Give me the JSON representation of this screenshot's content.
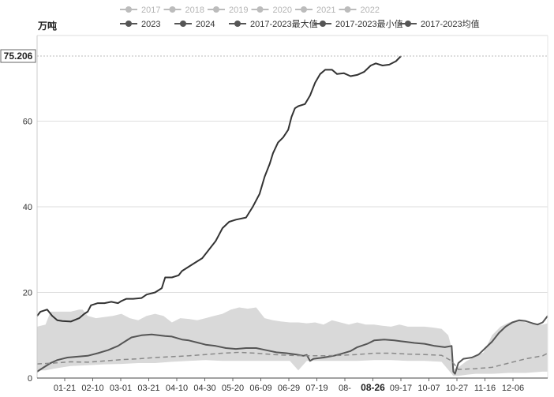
{
  "chart_data": {
    "type": "line",
    "ylabel": "万吨",
    "ylim": [
      0,
      80
    ],
    "yticks": [
      0,
      20,
      40,
      60
    ],
    "x_ticks": [
      "01-21",
      "02-10",
      "03-01",
      "03-21",
      "04-10",
      "04-30",
      "05-20",
      "06-09",
      "06-29",
      "07-19",
      "08-",
      "08-26",
      "09-17",
      "10-07",
      "10-27",
      "11-16",
      "12-06"
    ],
    "hover": {
      "x_label": "08-26",
      "y_value": "75.206"
    },
    "legend": [
      {
        "name": "2017",
        "active": false
      },
      {
        "name": "2018",
        "active": false
      },
      {
        "name": "2019",
        "active": false
      },
      {
        "name": "2020",
        "active": false
      },
      {
        "name": "2021",
        "active": false
      },
      {
        "name": "2022",
        "active": false
      },
      {
        "name": "2023",
        "active": true
      },
      {
        "name": "2024",
        "active": true
      },
      {
        "name": "2017-2023最大值",
        "active": true
      },
      {
        "name": "2017-2023最小值",
        "active": true
      },
      {
        "name": "2017-2023均值",
        "active": true
      }
    ],
    "band": {
      "max": [
        [
          0,
          12
        ],
        [
          5,
          12.5
        ],
        [
          8,
          15.5
        ],
        [
          20,
          15.5
        ],
        [
          25,
          16
        ],
        [
          27,
          16
        ],
        [
          30,
          14.5
        ],
        [
          35,
          14
        ],
        [
          45,
          14.5
        ],
        [
          50,
          15
        ],
        [
          55,
          14
        ],
        [
          60,
          13.5
        ],
        [
          65,
          14.5
        ],
        [
          70,
          15
        ],
        [
          75,
          14.5
        ],
        [
          80,
          13
        ],
        [
          85,
          14
        ],
        [
          90,
          13.8
        ],
        [
          95,
          13.5
        ],
        [
          100,
          14
        ],
        [
          105,
          14.5
        ],
        [
          110,
          15
        ],
        [
          115,
          16
        ],
        [
          120,
          16.5
        ],
        [
          125,
          16.2
        ],
        [
          130,
          16.5
        ],
        [
          135,
          14
        ],
        [
          140,
          13.5
        ],
        [
          145,
          13.2
        ],
        [
          150,
          13
        ],
        [
          155,
          13
        ],
        [
          160,
          12.8
        ],
        [
          165,
          13
        ],
        [
          170,
          12.5
        ],
        [
          175,
          13.5
        ],
        [
          180,
          13
        ],
        [
          185,
          12.5
        ],
        [
          190,
          13
        ],
        [
          195,
          12.5
        ],
        [
          200,
          12.5
        ],
        [
          205,
          12.2
        ],
        [
          210,
          12
        ],
        [
          215,
          12.5
        ],
        [
          220,
          12
        ],
        [
          225,
          12
        ],
        [
          230,
          12
        ],
        [
          235,
          11.8
        ],
        [
          240,
          11.5
        ],
        [
          244,
          10
        ],
        [
          246,
          7
        ],
        [
          247,
          2
        ],
        [
          250,
          2.5
        ],
        [
          255,
          4
        ],
        [
          260,
          5
        ],
        [
          265,
          6
        ],
        [
          270,
          10
        ],
        [
          275,
          12
        ],
        [
          280,
          13
        ],
        [
          285,
          13.5
        ],
        [
          290,
          13
        ],
        [
          295,
          12.5
        ],
        [
          300,
          12.5
        ],
        [
          303,
          12.8
        ]
      ],
      "min": [
        [
          0,
          1.8
        ],
        [
          5,
          1.8
        ],
        [
          10,
          2.2
        ],
        [
          15,
          2.5
        ],
        [
          20,
          2.8
        ],
        [
          30,
          3
        ],
        [
          40,
          3.2
        ],
        [
          50,
          3.3
        ],
        [
          60,
          3.5
        ],
        [
          70,
          3.5
        ],
        [
          80,
          3.8
        ],
        [
          90,
          4
        ],
        [
          100,
          4.2
        ],
        [
          110,
          4
        ],
        [
          120,
          4
        ],
        [
          130,
          4
        ],
        [
          140,
          4
        ],
        [
          150,
          4
        ],
        [
          155,
          1.8
        ],
        [
          160,
          4
        ],
        [
          170,
          4
        ],
        [
          180,
          4
        ],
        [
          190,
          4
        ],
        [
          200,
          4.2
        ],
        [
          210,
          4.2
        ],
        [
          220,
          4
        ],
        [
          230,
          4
        ],
        [
          240,
          3.8
        ],
        [
          246,
          1
        ],
        [
          247,
          0.5
        ],
        [
          250,
          0.5
        ],
        [
          255,
          0.8
        ],
        [
          260,
          1
        ],
        [
          270,
          1
        ],
        [
          280,
          1.2
        ],
        [
          290,
          1.2
        ],
        [
          300,
          1.5
        ],
        [
          303,
          1.5
        ]
      ]
    },
    "series": [
      {
        "name": "2024",
        "points": [
          [
            0,
            14.5
          ],
          [
            2,
            15.5
          ],
          [
            6,
            16
          ],
          [
            9,
            14.5
          ],
          [
            12,
            13.5
          ],
          [
            15,
            13.3
          ],
          [
            20,
            13.2
          ],
          [
            25,
            14
          ],
          [
            28,
            15
          ],
          [
            30,
            15.5
          ],
          [
            32,
            17
          ],
          [
            36,
            17.5
          ],
          [
            40,
            17.5
          ],
          [
            44,
            17.8
          ],
          [
            48,
            17.5
          ],
          [
            50,
            18
          ],
          [
            53,
            18.5
          ],
          [
            57,
            18.5
          ],
          [
            62,
            18.7
          ],
          [
            65,
            19.5
          ],
          [
            70,
            20
          ],
          [
            74,
            21
          ],
          [
            76,
            23.5
          ],
          [
            80,
            23.5
          ],
          [
            84,
            24
          ],
          [
            86,
            25
          ],
          [
            90,
            26
          ],
          [
            94,
            27
          ],
          [
            98,
            28
          ],
          [
            102,
            30
          ],
          [
            106,
            32
          ],
          [
            108,
            33.5
          ],
          [
            110,
            35
          ],
          [
            114,
            36.5
          ],
          [
            118,
            37
          ],
          [
            124,
            37.5
          ],
          [
            128,
            40
          ],
          [
            132,
            43
          ],
          [
            135,
            47
          ],
          [
            138,
            50
          ],
          [
            140,
            52.5
          ],
          [
            143,
            55
          ],
          [
            146,
            56.2
          ],
          [
            149,
            58
          ],
          [
            151,
            61
          ],
          [
            153,
            63
          ],
          [
            155,
            63.5
          ],
          [
            159,
            64
          ],
          [
            162,
            66
          ],
          [
            165,
            69
          ],
          [
            168,
            71
          ],
          [
            171,
            72
          ],
          [
            175,
            72
          ],
          [
            178,
            71
          ],
          [
            182,
            71.2
          ],
          [
            186,
            70.5
          ],
          [
            190,
            70.8
          ],
          [
            194,
            71.5
          ],
          [
            198,
            73
          ],
          [
            201,
            73.5
          ],
          [
            205,
            73
          ],
          [
            209,
            73.2
          ],
          [
            213,
            74
          ],
          [
            216,
            75.2
          ]
        ]
      },
      {
        "name": "2023",
        "points": [
          [
            0,
            1.5
          ],
          [
            4,
            2.5
          ],
          [
            8,
            3.5
          ],
          [
            12,
            4.2
          ],
          [
            18,
            4.8
          ],
          [
            24,
            5
          ],
          [
            30,
            5.2
          ],
          [
            36,
            5.8
          ],
          [
            42,
            6.5
          ],
          [
            48,
            7.5
          ],
          [
            52,
            8.5
          ],
          [
            56,
            9.5
          ],
          [
            62,
            10
          ],
          [
            68,
            10.2
          ],
          [
            72,
            10
          ],
          [
            76,
            9.8
          ],
          [
            80,
            9.7
          ],
          [
            86,
            9
          ],
          [
            90,
            8.8
          ],
          [
            96,
            8.2
          ],
          [
            100,
            7.8
          ],
          [
            106,
            7.5
          ],
          [
            112,
            7
          ],
          [
            118,
            6.8
          ],
          [
            124,
            7
          ],
          [
            130,
            7
          ],
          [
            136,
            6.5
          ],
          [
            142,
            6
          ],
          [
            148,
            5.8
          ],
          [
            154,
            5.5
          ],
          [
            158,
            5.2
          ],
          [
            160,
            5.4
          ],
          [
            162,
            4
          ],
          [
            164,
            4.5
          ],
          [
            170,
            4.8
          ],
          [
            176,
            5.2
          ],
          [
            180,
            5.6
          ],
          [
            186,
            6.3
          ],
          [
            190,
            7.2
          ],
          [
            196,
            8
          ],
          [
            200,
            8.8
          ],
          [
            206,
            9
          ],
          [
            212,
            8.8
          ],
          [
            218,
            8.5
          ],
          [
            224,
            8.2
          ],
          [
            230,
            8
          ],
          [
            236,
            7.5
          ],
          [
            242,
            7.2
          ],
          [
            246,
            7.5
          ],
          [
            247,
            1.5
          ],
          [
            248,
            1
          ],
          [
            250,
            3.5
          ],
          [
            253,
            4.5
          ],
          [
            258,
            4.8
          ],
          [
            262,
            5.5
          ],
          [
            266,
            7
          ],
          [
            270,
            8.5
          ],
          [
            274,
            10.5
          ],
          [
            278,
            12
          ],
          [
            282,
            13
          ],
          [
            286,
            13.5
          ],
          [
            290,
            13.3
          ],
          [
            294,
            12.8
          ],
          [
            297,
            12.5
          ],
          [
            300,
            13
          ],
          [
            303,
            14.5
          ]
        ]
      },
      {
        "name": "2017-2023均值",
        "dashed": true,
        "points": [
          [
            0,
            3.3
          ],
          [
            10,
            3.5
          ],
          [
            20,
            3.8
          ],
          [
            30,
            3.7
          ],
          [
            40,
            4
          ],
          [
            50,
            4.3
          ],
          [
            60,
            4.5
          ],
          [
            70,
            4.8
          ],
          [
            80,
            5
          ],
          [
            90,
            5.2
          ],
          [
            100,
            5.5
          ],
          [
            110,
            5.8
          ],
          [
            120,
            6
          ],
          [
            130,
            5.8
          ],
          [
            140,
            5.5
          ],
          [
            150,
            5.3
          ],
          [
            160,
            5.2
          ],
          [
            170,
            5.2
          ],
          [
            180,
            5.3
          ],
          [
            190,
            5.5
          ],
          [
            200,
            5.8
          ],
          [
            210,
            5.8
          ],
          [
            220,
            5.6
          ],
          [
            230,
            5.5
          ],
          [
            240,
            5.3
          ],
          [
            246,
            4
          ],
          [
            250,
            2
          ],
          [
            260,
            2.2
          ],
          [
            270,
            2.5
          ],
          [
            280,
            3.5
          ],
          [
            290,
            4.5
          ],
          [
            300,
            5.2
          ],
          [
            303,
            5.8
          ]
        ]
      }
    ]
  }
}
